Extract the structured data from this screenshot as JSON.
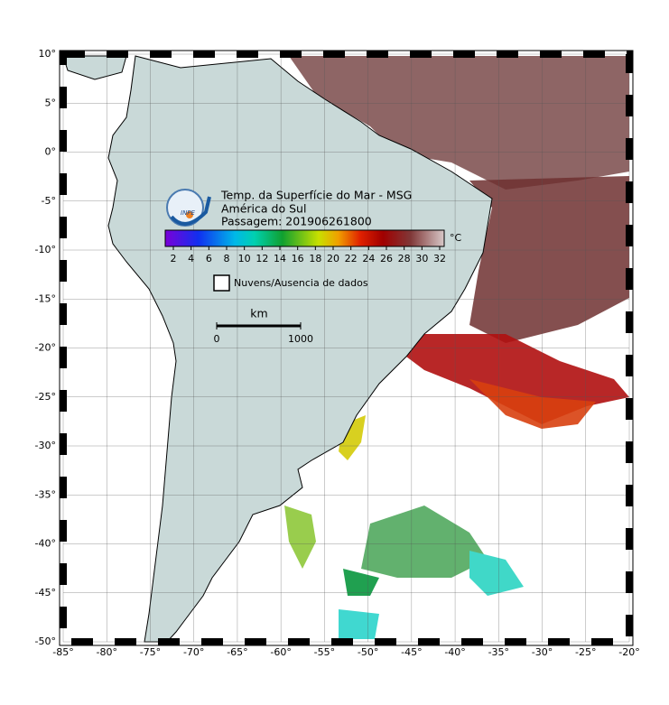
{
  "map": {
    "title": "Temp. da Superfície do Mar - MSG",
    "region": "América do Sul",
    "pass": "Passagem: 201906261800",
    "logo": "INPE",
    "xticks": [
      {
        "value": -85,
        "label": "-85°"
      },
      {
        "value": -80,
        "label": "-80°"
      },
      {
        "value": -75,
        "label": "-75°"
      },
      {
        "value": -70,
        "label": "-70°"
      },
      {
        "value": -65,
        "label": "-65°"
      },
      {
        "value": -60,
        "label": "-60°"
      },
      {
        "value": -55,
        "label": "-55°"
      },
      {
        "value": -50,
        "label": "-50°"
      },
      {
        "value": -45,
        "label": "-45°"
      },
      {
        "value": -40,
        "label": "-40°"
      },
      {
        "value": -35,
        "label": "-35°"
      },
      {
        "value": -30,
        "label": "-30°"
      },
      {
        "value": -25,
        "label": "-25°"
      },
      {
        "value": -20,
        "label": "-20°"
      }
    ],
    "yticks": [
      {
        "value": 10,
        "label": "10°"
      },
      {
        "value": 5,
        "label": "5°"
      },
      {
        "value": 0,
        "label": "0°"
      },
      {
        "value": -5,
        "label": "-5°"
      },
      {
        "value": -10,
        "label": "-10°"
      },
      {
        "value": -15,
        "label": "-15°"
      },
      {
        "value": -20,
        "label": "-20°"
      },
      {
        "value": -25,
        "label": "-25°"
      },
      {
        "value": -30,
        "label": "-30°"
      },
      {
        "value": -35,
        "label": "-35°"
      },
      {
        "value": -40,
        "label": "-40°"
      },
      {
        "value": -45,
        "label": "-45°"
      },
      {
        "value": -50,
        "label": "-50°"
      }
    ],
    "colorbar": {
      "ticks": [
        2,
        4,
        6,
        8,
        10,
        12,
        14,
        16,
        18,
        20,
        22,
        24,
        26,
        28,
        30,
        32
      ],
      "unit": "°C"
    },
    "legend": "Nuvens/Ausencia de dados",
    "scale": {
      "unit": "km",
      "ticks": [
        0,
        1000
      ]
    }
  }
}
